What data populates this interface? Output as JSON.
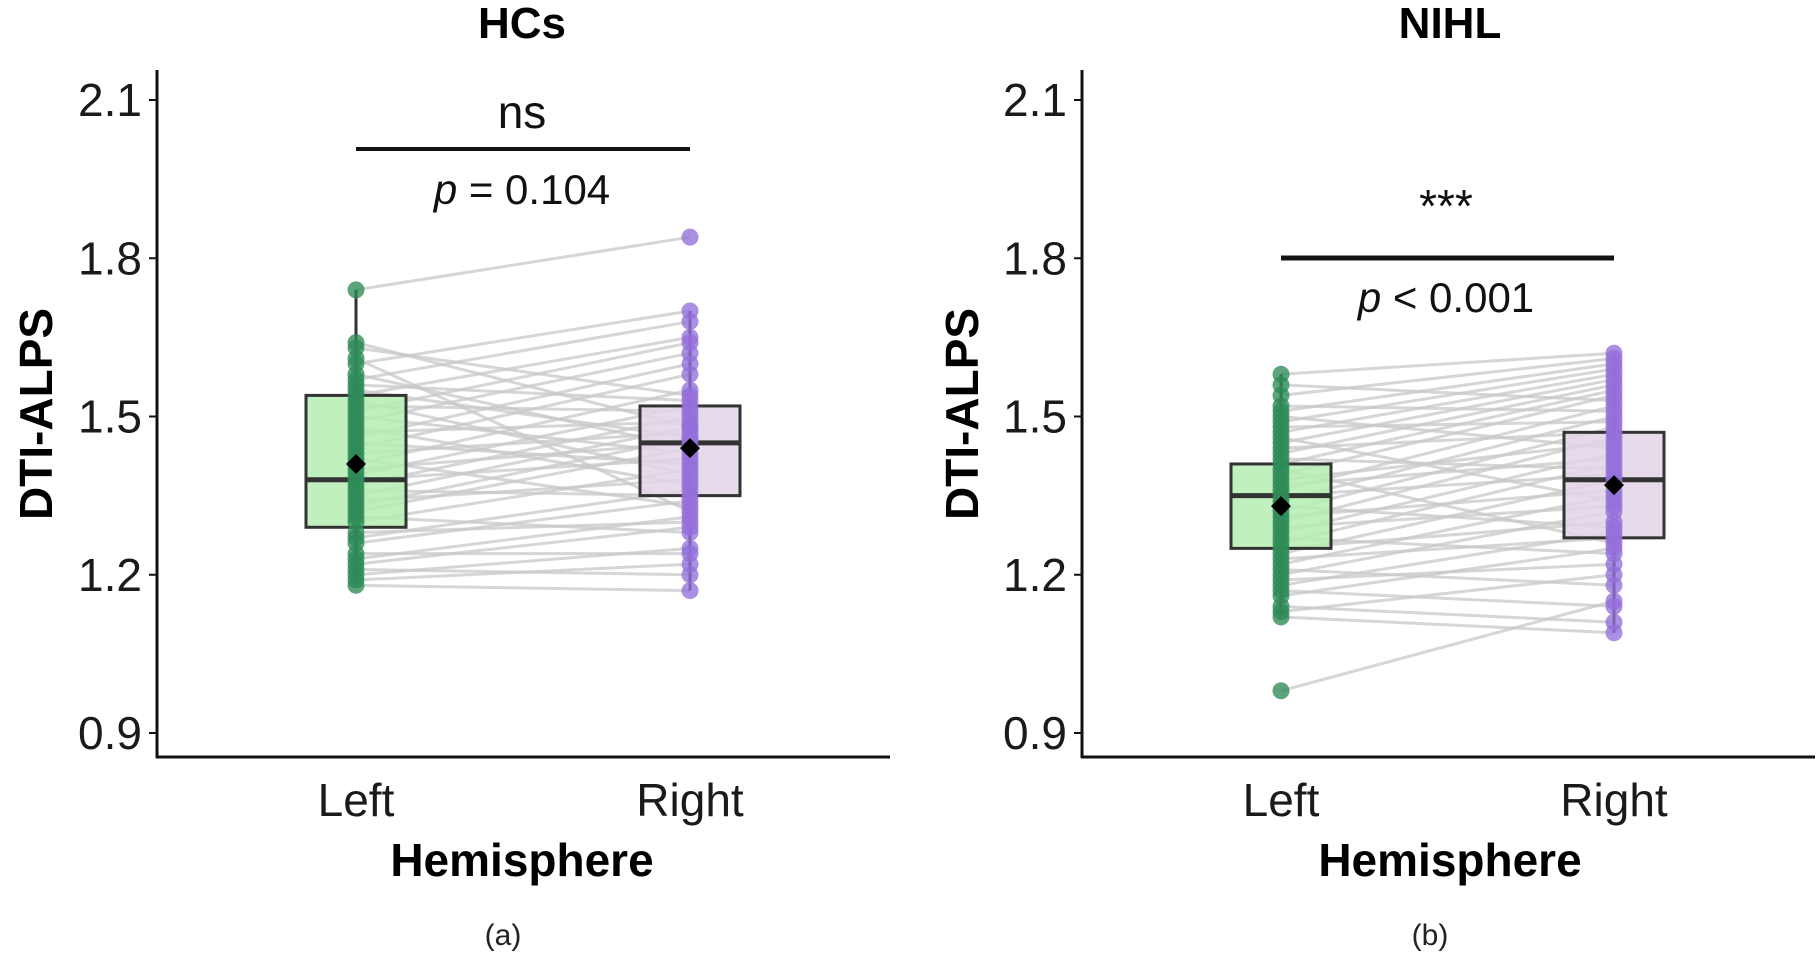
{
  "chart_data": [
    {
      "type": "boxplot-paired",
      "panel_label": "(a)",
      "title": "HCs",
      "xlabel": "Hemisphere",
      "ylabel": "DTI-ALPS",
      "categories": [
        "Left",
        "Right"
      ],
      "ylim": [
        0.85,
        2.15
      ],
      "yticks": [
        0.9,
        1.2,
        1.5,
        1.8,
        2.1
      ],
      "ytick_labels": [
        "0.9",
        "1.2",
        "1.5",
        "1.8",
        "2.1"
      ],
      "significance": {
        "label": "ns",
        "p_prefix": "p",
        "p_text": " = 0.104"
      },
      "boxes": [
        {
          "name": "Left",
          "q1": 1.29,
          "median": 1.38,
          "q3": 1.54,
          "whisker_low": 1.18,
          "whisker_high": 1.74,
          "mean": 1.41,
          "fill": "#b5edb2",
          "point_color": "#2e8b57"
        },
        {
          "name": "Right",
          "q1": 1.35,
          "median": 1.45,
          "q3": 1.52,
          "whisker_low": 1.17,
          "whisker_high": 1.7,
          "mean": 1.44,
          "fill": "#e3d3e6",
          "point_color": "#9370db"
        }
      ],
      "pairs": [
        [
          1.18,
          1.17
        ],
        [
          1.19,
          1.22
        ],
        [
          1.2,
          1.25
        ],
        [
          1.21,
          1.2
        ],
        [
          1.22,
          1.29
        ],
        [
          1.23,
          1.31
        ],
        [
          1.24,
          1.24
        ],
        [
          1.26,
          1.34
        ],
        [
          1.27,
          1.36
        ],
        [
          1.28,
          1.3
        ],
        [
          1.3,
          1.4
        ],
        [
          1.31,
          1.28
        ],
        [
          1.32,
          1.44
        ],
        [
          1.33,
          1.46
        ],
        [
          1.34,
          1.38
        ],
        [
          1.35,
          1.48
        ],
        [
          1.36,
          1.35
        ],
        [
          1.37,
          1.5
        ],
        [
          1.38,
          1.42
        ],
        [
          1.39,
          1.52
        ],
        [
          1.4,
          1.45
        ],
        [
          1.41,
          1.55
        ],
        [
          1.42,
          1.33
        ],
        [
          1.43,
          1.47
        ],
        [
          1.44,
          1.58
        ],
        [
          1.45,
          1.41
        ],
        [
          1.46,
          1.6
        ],
        [
          1.47,
          1.49
        ],
        [
          1.48,
          1.37
        ],
        [
          1.49,
          1.62
        ],
        [
          1.5,
          1.43
        ],
        [
          1.51,
          1.64
        ],
        [
          1.52,
          1.51
        ],
        [
          1.53,
          1.39
        ],
        [
          1.54,
          1.65
        ],
        [
          1.55,
          1.46
        ],
        [
          1.56,
          1.53
        ],
        [
          1.57,
          1.68
        ],
        [
          1.58,
          1.44
        ],
        [
          1.6,
          1.7
        ],
        [
          1.61,
          1.32
        ],
        [
          1.63,
          1.54
        ],
        [
          1.64,
          1.48
        ],
        [
          1.74,
          1.84
        ]
      ]
    },
    {
      "type": "boxplot-paired",
      "panel_label": "(b)",
      "title": "NIHL",
      "xlabel": "Hemisphere",
      "ylabel": "DTI-ALPS",
      "categories": [
        "Left",
        "Right"
      ],
      "ylim": [
        0.85,
        2.15
      ],
      "yticks": [
        0.9,
        1.2,
        1.5,
        1.8,
        2.1
      ],
      "ytick_labels": [
        "0.9",
        "1.2",
        "1.5",
        "1.8",
        "2.1"
      ],
      "significance": {
        "label": "***",
        "p_prefix": "p",
        "p_text": " < 0.001"
      },
      "boxes": [
        {
          "name": "Left",
          "q1": 1.25,
          "median": 1.35,
          "q3": 1.41,
          "whisker_low": 1.12,
          "whisker_high": 1.58,
          "mean": 1.33,
          "fill": "#b5edb2",
          "point_color": "#2e8b57"
        },
        {
          "name": "Right",
          "q1": 1.27,
          "median": 1.38,
          "q3": 1.47,
          "whisker_low": 1.09,
          "whisker_high": 1.62,
          "mean": 1.37,
          "fill": "#e3d3e6",
          "point_color": "#9370db"
        }
      ],
      "pairs": [
        [
          0.98,
          1.15
        ],
        [
          1.12,
          1.09
        ],
        [
          1.13,
          1.2
        ],
        [
          1.14,
          1.11
        ],
        [
          1.16,
          1.25
        ],
        [
          1.17,
          1.14
        ],
        [
          1.18,
          1.28
        ],
        [
          1.19,
          1.22
        ],
        [
          1.2,
          1.32
        ],
        [
          1.21,
          1.18
        ],
        [
          1.22,
          1.35
        ],
        [
          1.23,
          1.27
        ],
        [
          1.24,
          1.38
        ],
        [
          1.25,
          1.3
        ],
        [
          1.26,
          1.41
        ],
        [
          1.27,
          1.24
        ],
        [
          1.28,
          1.43
        ],
        [
          1.29,
          1.33
        ],
        [
          1.3,
          1.46
        ],
        [
          1.31,
          1.36
        ],
        [
          1.32,
          1.48
        ],
        [
          1.33,
          1.29
        ],
        [
          1.34,
          1.5
        ],
        [
          1.35,
          1.39
        ],
        [
          1.36,
          1.52
        ],
        [
          1.37,
          1.42
        ],
        [
          1.38,
          1.45
        ],
        [
          1.39,
          1.54
        ],
        [
          1.4,
          1.26
        ],
        [
          1.41,
          1.55
        ],
        [
          1.42,
          1.4
        ],
        [
          1.43,
          1.56
        ],
        [
          1.44,
          1.47
        ],
        [
          1.45,
          1.57
        ],
        [
          1.46,
          1.34
        ],
        [
          1.47,
          1.58
        ],
        [
          1.48,
          1.49
        ],
        [
          1.49,
          1.59
        ],
        [
          1.5,
          1.44
        ],
        [
          1.51,
          1.6
        ],
        [
          1.52,
          1.51
        ],
        [
          1.54,
          1.61
        ],
        [
          1.56,
          1.53
        ],
        [
          1.58,
          1.62
        ]
      ]
    }
  ]
}
